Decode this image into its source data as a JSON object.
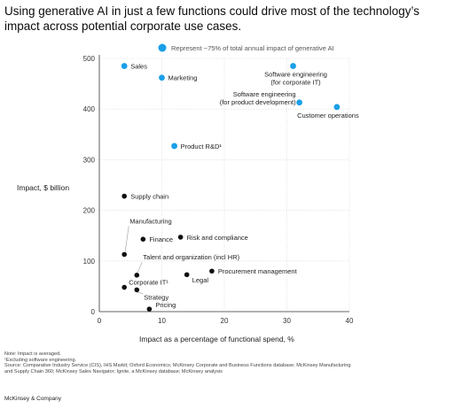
{
  "title_lines": [
    "Using generative AI in just a few functions could drive most of the technology’s",
    "impact across potential corporate use cases."
  ],
  "colors": {
    "highlight": "#1a9fe8",
    "standard": "#0f0f0f",
    "axis": "#333333",
    "grid": "#d4d4d4",
    "leader": "#9a9a9a"
  },
  "legend": {
    "label": "Represent ~75% of total annual impact of generative AI"
  },
  "notes": {
    "line1": "Note: Impact is averaged.",
    "line2": "¹Excluding software engineering.",
    "line3": "Source: Comparative Industry Service (CIS), IHS Markit; Oxford Economics; McKinsey Corporate and Business Functions database; McKinsey Manufacturing",
    "line4": "and Supply Chain 360; McKinsey Sales Navigator; Ignite, a McKinsey database; McKinsey analysis"
  },
  "footer": "McKinsey & Company",
  "chart_data": {
    "type": "scatter",
    "title": "Using generative AI in just a few functions could drive most of the technology’s impact across potential corporate use cases.",
    "xlabel": "Impact as a percentage of functional spend, %",
    "ylabel": "Impact, $ billion",
    "xlim": [
      0,
      40
    ],
    "ylim": [
      0,
      500
    ],
    "xticks": [
      "0",
      "10",
      "20",
      "30",
      "40"
    ],
    "yticks": [
      "0",
      "100",
      "200",
      "300",
      "400",
      "500"
    ],
    "grid": true,
    "legend_position": "top",
    "points": [
      {
        "label": [
          "Sales"
        ],
        "x": 4,
        "y": 485,
        "highlight": true
      },
      {
        "label": [
          "Marketing"
        ],
        "x": 10,
        "y": 462,
        "highlight": true
      },
      {
        "label": [
          "Software engineering",
          "(for corporate IT)"
        ],
        "x": 31,
        "y": 485,
        "highlight": true
      },
      {
        "label": [
          "Software engineering",
          "(for product development)"
        ],
        "x": 32,
        "y": 413,
        "highlight": true
      },
      {
        "label": [
          "Customer operations"
        ],
        "x": 38,
        "y": 404,
        "highlight": true
      },
      {
        "label": [
          "Product R&D¹"
        ],
        "x": 12,
        "y": 327,
        "highlight": true
      },
      {
        "label": [
          "Supply chain"
        ],
        "x": 4,
        "y": 228,
        "highlight": false
      },
      {
        "label": [
          "Manufacturing"
        ],
        "x": 4,
        "y": 113,
        "highlight": false
      },
      {
        "label": [
          "Finance"
        ],
        "x": 7,
        "y": 143,
        "highlight": false
      },
      {
        "label": [
          "Risk and compliance"
        ],
        "x": 13,
        "y": 147,
        "highlight": false
      },
      {
        "label": [
          "Talent and organization (incl HR)"
        ],
        "x": 6,
        "y": 72,
        "highlight": false
      },
      {
        "label": [
          "Procurement management"
        ],
        "x": 18,
        "y": 80,
        "highlight": false
      },
      {
        "label": [
          "Legal"
        ],
        "x": 14,
        "y": 73,
        "highlight": false
      },
      {
        "label": [
          "Corporate IT¹"
        ],
        "x": 4,
        "y": 48,
        "highlight": false
      },
      {
        "label": [
          "Strategy"
        ],
        "x": 6,
        "y": 43,
        "highlight": false
      },
      {
        "label": [
          "Pricing"
        ],
        "x": 8,
        "y": 5,
        "highlight": false
      }
    ]
  }
}
